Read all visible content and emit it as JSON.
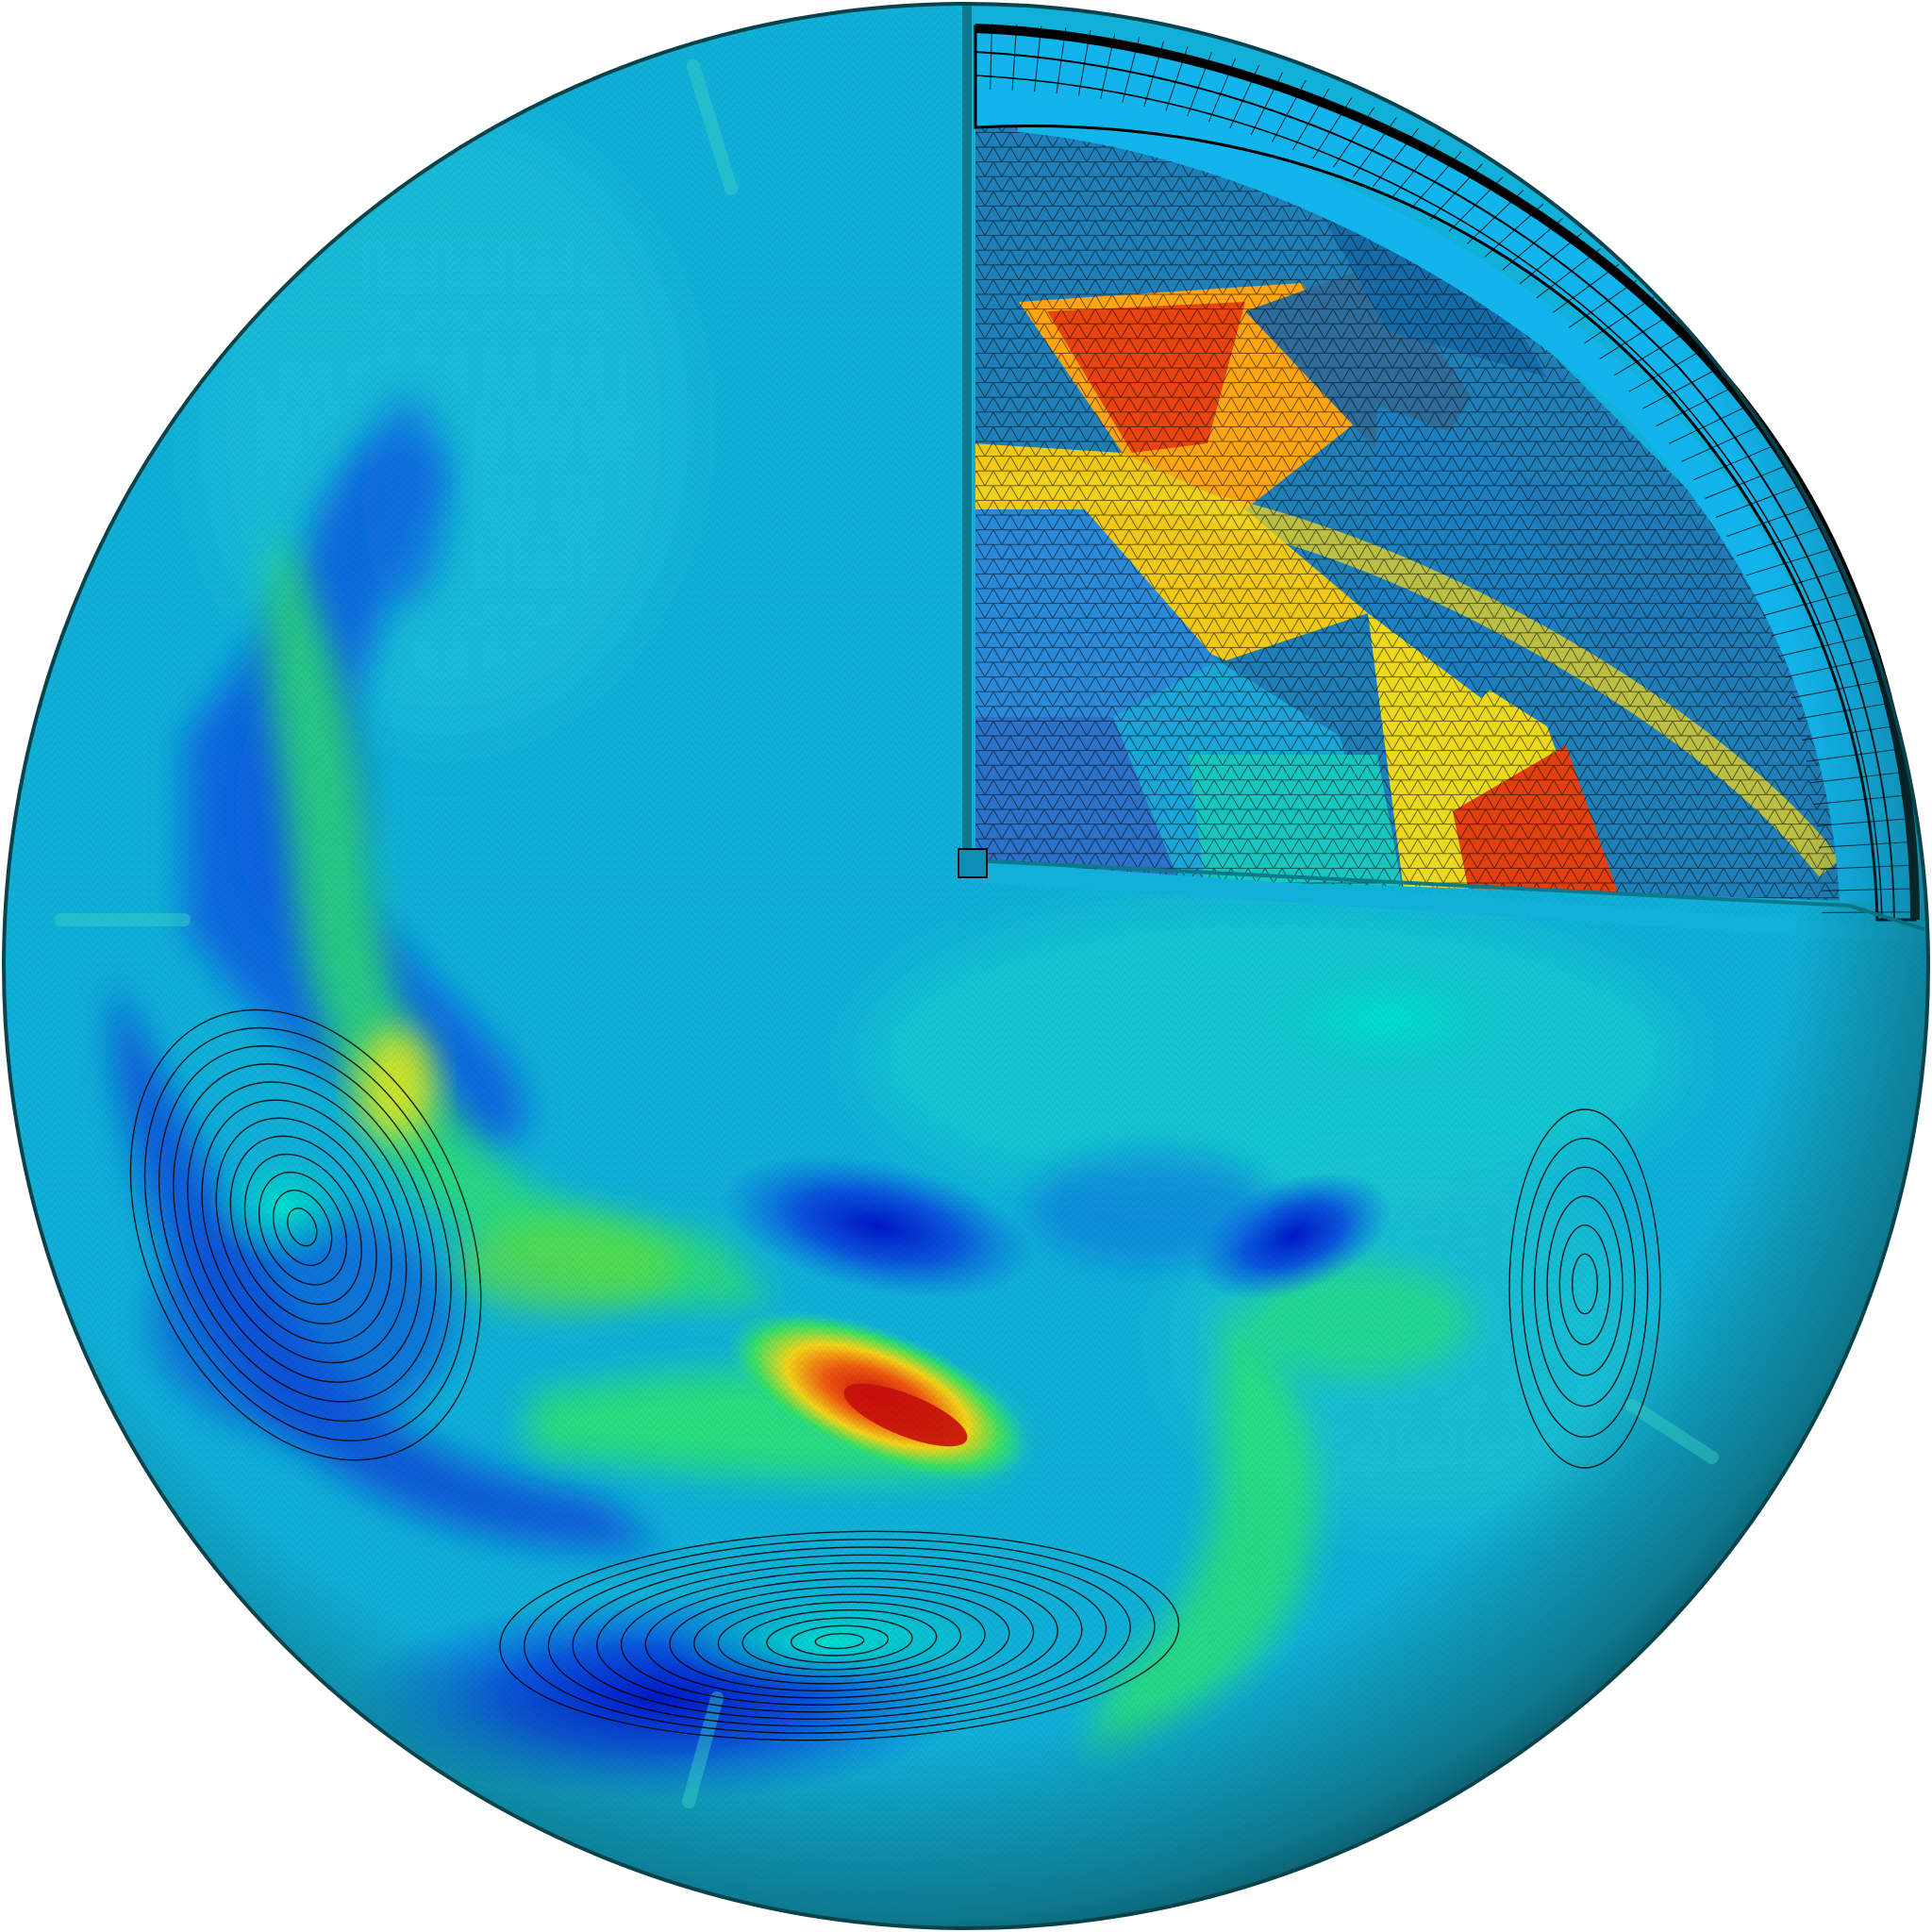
{
  "figure": {
    "background": "#ffffff",
    "colormap": [
      "#0018c8",
      "#0a6fe0",
      "#00b6e6",
      "#00d2c0",
      "#2ee86a",
      "#e9e81c",
      "#ff9a10",
      "#d41f0c"
    ],
    "surface_base": "#0fb2d8",
    "limb_color": "#0c5a66",
    "shell_color": "#12b4ec",
    "mesh_line_color": "#000000",
    "contour_color": "#000000"
  }
}
